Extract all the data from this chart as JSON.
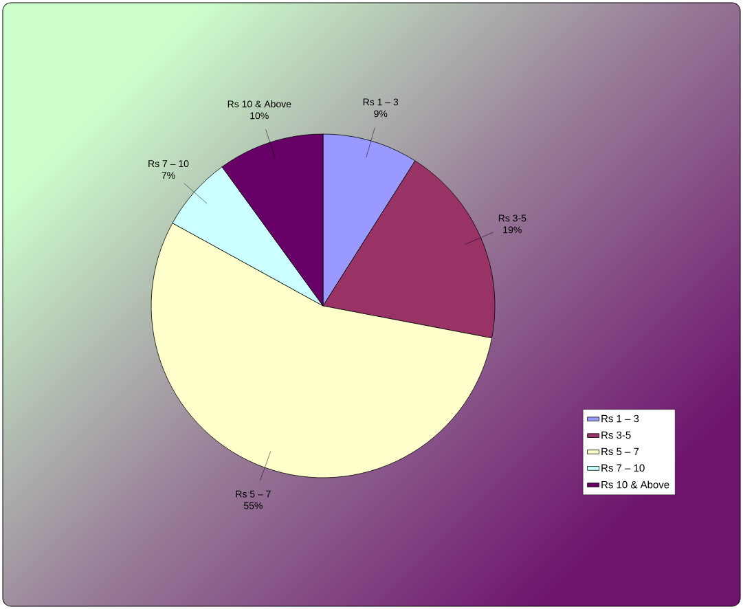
{
  "chart_data": {
    "type": "pie",
    "categories": [
      "Rs 1 – 3",
      "Rs 3-5",
      "Rs 5 – 7",
      "Rs 7 – 10",
      "Rs 10 & Above"
    ],
    "values": [
      9,
      19,
      55,
      7,
      10
    ],
    "value_labels": [
      "9%",
      "19%",
      "55%",
      "7%",
      "10%"
    ],
    "colors": [
      "#9999ff",
      "#993366",
      "#ffffcc",
      "#ccffff",
      "#660066"
    ],
    "legend": "right"
  }
}
